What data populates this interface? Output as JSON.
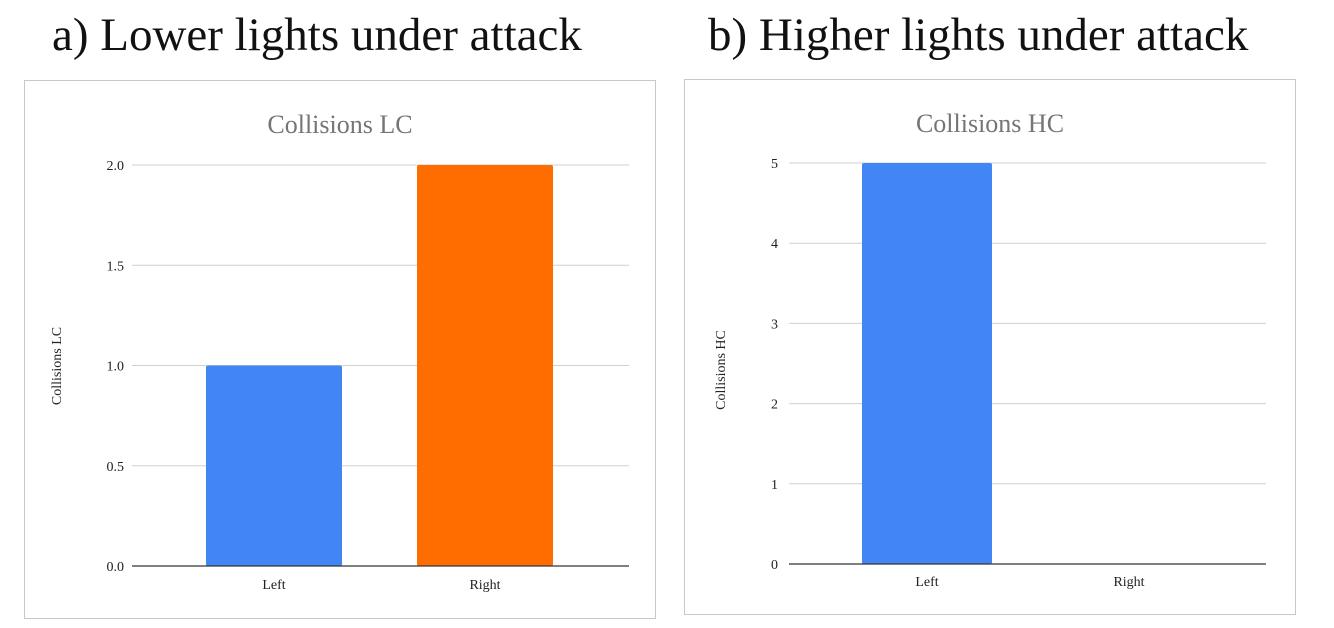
{
  "panels": [
    {
      "heading": "a) Lower lights under attack"
    },
    {
      "heading": "b) Higher lights under attack"
    }
  ],
  "chart_data": [
    {
      "type": "bar",
      "title": "Collisions LC",
      "xlabel": "",
      "ylabel": "Collisions LC",
      "categories": [
        "Left",
        "Right"
      ],
      "values": [
        1,
        2
      ],
      "colors": [
        "#4285f4",
        "#ff6d01"
      ],
      "ylim": [
        0,
        2
      ],
      "yticks": [
        "0.0",
        "0.5",
        "1.0",
        "1.5",
        "2.0"
      ],
      "grid": true,
      "legend": "none"
    },
    {
      "type": "bar",
      "title": "Collisions HC",
      "xlabel": "",
      "ylabel": "Collisions HC",
      "categories": [
        "Left",
        "Right"
      ],
      "values": [
        5,
        0
      ],
      "colors": [
        "#4285f4",
        "#ff6d01"
      ],
      "ylim": [
        0,
        5
      ],
      "yticks": [
        "0",
        "1",
        "2",
        "3",
        "4",
        "5"
      ],
      "grid": true,
      "legend": "none"
    }
  ]
}
